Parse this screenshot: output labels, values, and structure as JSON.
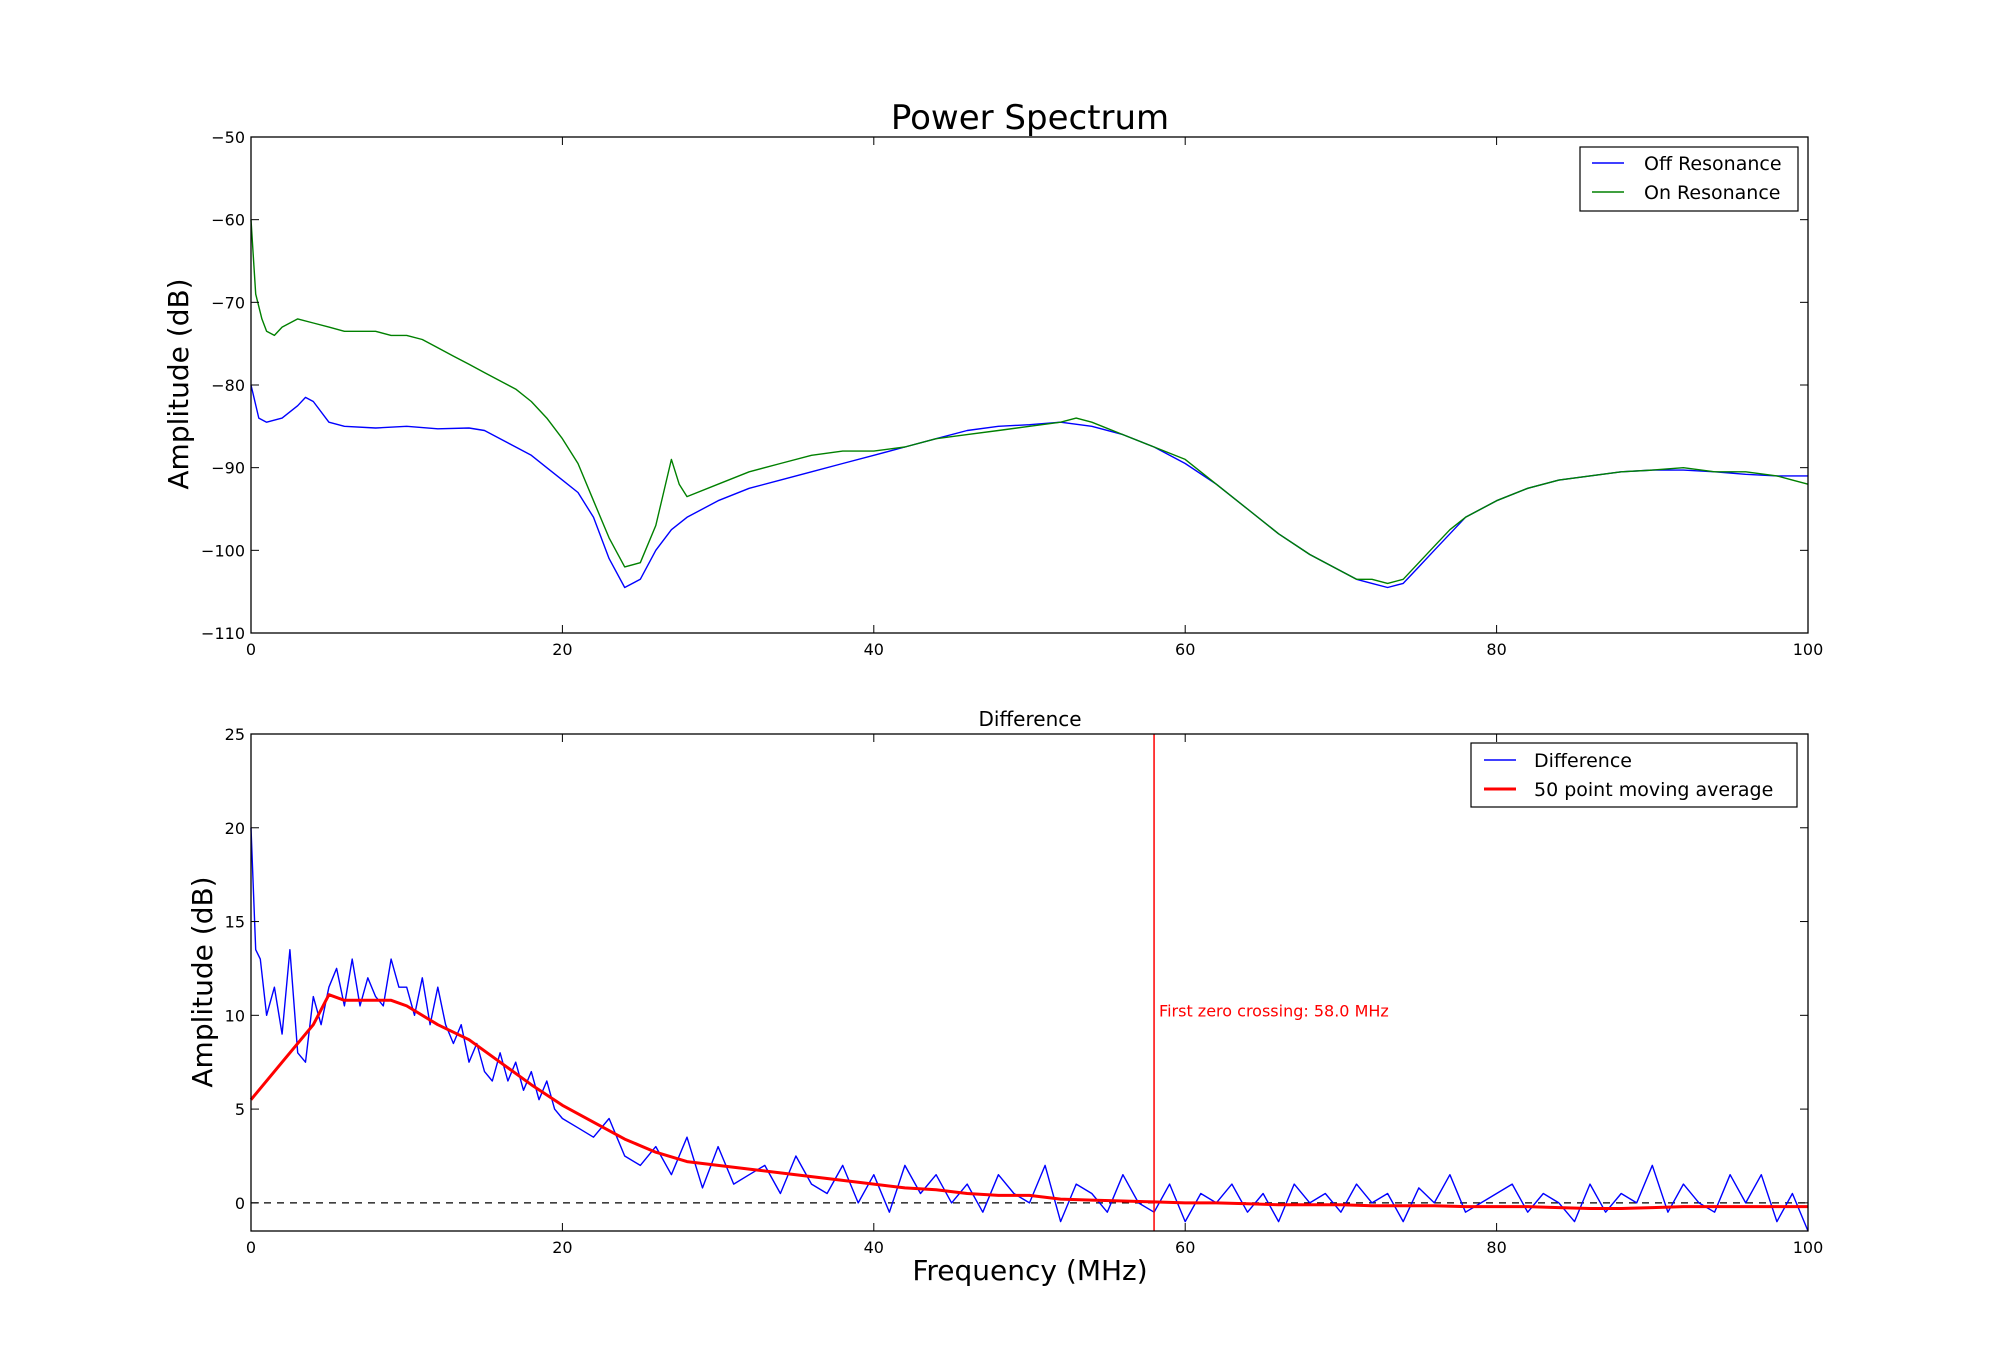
{
  "chart_data": [
    {
      "type": "line",
      "title": "Power Spectrum",
      "xlabel": "",
      "ylabel": "Amplitude (dB)",
      "xlim": [
        0,
        100
      ],
      "ylim": [
        -110,
        -50
      ],
      "xticks": [
        0,
        20,
        40,
        60,
        80,
        100
      ],
      "xtick_labels": [
        "0",
        "20",
        "40",
        "60",
        "80",
        "100"
      ],
      "yticks": [
        -110,
        -100,
        -90,
        -80,
        -70,
        -60,
        -50
      ],
      "ytick_labels": [
        "−110",
        "−100",
        "−90",
        "−80",
        "−70",
        "−60",
        "−50"
      ],
      "grid": false,
      "legend_position": "top-right",
      "series": [
        {
          "name": "Off Resonance",
          "color": "#0000ff",
          "x": [
            0,
            0.5,
            1,
            2,
            3,
            3.5,
            4,
            5,
            6,
            8,
            10,
            12,
            14,
            15,
            16,
            17,
            18,
            19,
            20,
            21,
            22,
            23,
            24,
            25,
            26,
            27,
            28,
            30,
            32,
            34,
            36,
            38,
            40,
            42,
            44,
            46,
            48,
            50,
            52,
            54,
            56,
            58,
            60,
            62,
            64,
            66,
            68,
            70,
            71,
            72,
            73,
            74,
            75,
            76,
            77,
            78,
            80,
            82,
            84,
            86,
            88,
            90,
            92,
            94,
            96,
            98,
            100
          ],
          "y": [
            -80,
            -84,
            -84.5,
            -84,
            -82.5,
            -81.5,
            -82,
            -84.5,
            -85,
            -85.2,
            -85,
            -85.3,
            -85.2,
            -85.5,
            -86.5,
            -87.5,
            -88.5,
            -90,
            -91.5,
            -93,
            -96,
            -101,
            -104.5,
            -103.5,
            -100,
            -97.5,
            -96,
            -94,
            -92.5,
            -91.5,
            -90.5,
            -89.5,
            -88.5,
            -87.5,
            -86.5,
            -85.5,
            -85,
            -84.8,
            -84.5,
            -85,
            -86,
            -87.5,
            -89.5,
            -92,
            -95,
            -98,
            -100.5,
            -102.5,
            -103.5,
            -104,
            -104.5,
            -104,
            -102,
            -100,
            -98,
            -96,
            -94,
            -92.5,
            -91.5,
            -91,
            -90.5,
            -90.3,
            -90.3,
            -90.5,
            -90.8,
            -91,
            -91
          ]
        },
        {
          "name": "On Resonance",
          "color": "#008000",
          "x": [
            0,
            0.3,
            0.7,
            1,
            1.5,
            2,
            3,
            4,
            5,
            6,
            7,
            8,
            9,
            10,
            11,
            12,
            13,
            14,
            15,
            16,
            17,
            18,
            19,
            20,
            21,
            22,
            23,
            24,
            25,
            26,
            26.5,
            27,
            27.5,
            28,
            30,
            32,
            34,
            36,
            38,
            40,
            42,
            44,
            46,
            48,
            50,
            52,
            53,
            54,
            56,
            58,
            60,
            62,
            64,
            66,
            68,
            70,
            71,
            72,
            73,
            74,
            75,
            76,
            77,
            78,
            80,
            82,
            84,
            86,
            88,
            90,
            92,
            94,
            96,
            98,
            99,
            100
          ],
          "y": [
            -60,
            -69,
            -72,
            -73.5,
            -74,
            -73,
            -72,
            -72.5,
            -73,
            -73.5,
            -73.5,
            -73.5,
            -74,
            -74,
            -74.5,
            -75.5,
            -76.5,
            -77.5,
            -78.5,
            -79.5,
            -80.5,
            -82,
            -84,
            -86.5,
            -89.5,
            -94,
            -98.5,
            -102,
            -101.5,
            -97,
            -93,
            -89,
            -92,
            -93.5,
            -92,
            -90.5,
            -89.5,
            -88.5,
            -88,
            -88,
            -87.5,
            -86.5,
            -86,
            -85.5,
            -85,
            -84.5,
            -84,
            -84.5,
            -86,
            -87.5,
            -89,
            -92,
            -95,
            -98,
            -100.5,
            -102.5,
            -103.5,
            -103.5,
            -104,
            -103.5,
            -101.5,
            -99.5,
            -97.5,
            -96,
            -94,
            -92.5,
            -91.5,
            -91,
            -90.5,
            -90.3,
            -90,
            -90.5,
            -90.5,
            -91,
            -91.5,
            -92
          ]
        }
      ]
    },
    {
      "type": "line",
      "title": "Difference",
      "xlabel": "Frequency (MHz)",
      "ylabel": "Amplitude (dB)",
      "xlim": [
        0,
        100
      ],
      "ylim": [
        -1.5,
        25
      ],
      "xticks": [
        0,
        20,
        40,
        60,
        80,
        100
      ],
      "xtick_labels": [
        "0",
        "20",
        "40",
        "60",
        "80",
        "100"
      ],
      "yticks": [
        0,
        5,
        10,
        15,
        20,
        25
      ],
      "ytick_labels": [
        "0",
        "5",
        "10",
        "15",
        "20",
        "25"
      ],
      "grid": false,
      "legend_position": "top-right",
      "series": [
        {
          "name": "Difference",
          "color": "#0000ff",
          "x": [
            0,
            0.3,
            0.6,
            1,
            1.5,
            2,
            2.5,
            3,
            3.5,
            4,
            4.5,
            5,
            5.5,
            6,
            6.5,
            7,
            7.5,
            8,
            8.5,
            9,
            9.5,
            10,
            10.5,
            11,
            11.5,
            12,
            12.5,
            13,
            13.5,
            14,
            14.5,
            15,
            15.5,
            16,
            16.5,
            17,
            17.5,
            18,
            18.5,
            19,
            19.5,
            20,
            21,
            22,
            23,
            24,
            25,
            26,
            27,
            28,
            29,
            30,
            31,
            32,
            33,
            34,
            35,
            36,
            37,
            38,
            39,
            40,
            41,
            42,
            43,
            44,
            45,
            46,
            47,
            48,
            49,
            50,
            51,
            52,
            53,
            54,
            55,
            56,
            57,
            58,
            59,
            60,
            61,
            62,
            63,
            64,
            65,
            66,
            67,
            68,
            69,
            70,
            71,
            72,
            73,
            74,
            75,
            76,
            77,
            78,
            79,
            80,
            81,
            82,
            83,
            84,
            85,
            86,
            87,
            88,
            89,
            90,
            91,
            92,
            93,
            94,
            95,
            96,
            97,
            98,
            99,
            100
          ],
          "y": [
            20,
            13.5,
            13,
            10,
            11.5,
            9,
            13.5,
            8,
            7.5,
            11,
            9.5,
            11.5,
            12.5,
            10.5,
            13,
            10.5,
            12,
            11,
            10.5,
            13,
            11.5,
            11.5,
            10,
            12,
            9.5,
            11.5,
            9.5,
            8.5,
            9.5,
            7.5,
            8.5,
            7,
            6.5,
            8,
            6.5,
            7.5,
            6,
            7,
            5.5,
            6.5,
            5,
            4.5,
            4,
            3.5,
            4.5,
            2.5,
            2,
            3,
            1.5,
            3.5,
            0.8,
            3,
            1,
            1.5,
            2,
            0.5,
            2.5,
            1,
            0.5,
            2,
            0,
            1.5,
            -0.5,
            2,
            0.5,
            1.5,
            0,
            1,
            -0.5,
            1.5,
            0.5,
            0,
            2,
            -1,
            1,
            0.5,
            -0.5,
            1.5,
            0,
            -0.5,
            1,
            -1,
            0.5,
            0,
            1,
            -0.5,
            0.5,
            -1,
            1,
            0,
            0.5,
            -0.5,
            1,
            0,
            0.5,
            -1,
            0.8,
            0,
            1.5,
            -0.5,
            0,
            0.5,
            1,
            -0.5,
            0.5,
            0,
            -1,
            1,
            -0.5,
            0.5,
            0,
            2,
            -0.5,
            1,
            0,
            -0.5,
            1.5,
            0,
            1.5,
            -1,
            0.5,
            -1.5
          ]
        },
        {
          "name": "50 point moving average",
          "color": "#ff0000",
          "x": [
            0,
            2,
            4,
            5,
            6,
            8,
            9,
            10,
            12,
            14,
            16,
            18,
            20,
            22,
            24,
            26,
            28,
            30,
            32,
            34,
            36,
            38,
            40,
            42,
            44,
            46,
            48,
            50,
            52,
            54,
            56,
            58,
            60,
            62,
            64,
            66,
            68,
            70,
            72,
            74,
            76,
            78,
            80,
            82,
            84,
            86,
            88,
            90,
            92,
            94,
            96,
            98,
            100
          ],
          "y": [
            5.5,
            7.5,
            9.5,
            11.1,
            10.8,
            10.8,
            10.8,
            10.5,
            9.5,
            8.7,
            7.5,
            6.3,
            5.2,
            4.3,
            3.4,
            2.7,
            2.2,
            2,
            1.8,
            1.6,
            1.4,
            1.2,
            1,
            0.8,
            0.7,
            0.5,
            0.4,
            0.4,
            0.2,
            0.15,
            0.1,
            0.05,
            0,
            0,
            -0.05,
            -0.1,
            -0.1,
            -0.1,
            -0.15,
            -0.15,
            -0.15,
            -0.2,
            -0.2,
            -0.2,
            -0.25,
            -0.3,
            -0.3,
            -0.25,
            -0.2,
            -0.2,
            -0.2,
            -0.2,
            -0.2
          ]
        }
      ],
      "reference_lines": {
        "zero_line": {
          "y": 0,
          "color": "#000000",
          "style": "dashed"
        },
        "vertical_line": {
          "x": 58.0,
          "color": "#ff0000"
        }
      },
      "annotation": {
        "text": "First zero crossing: 58.0 MHz",
        "x": 58.0,
        "y": 10.2,
        "color": "#ff0000"
      }
    }
  ]
}
